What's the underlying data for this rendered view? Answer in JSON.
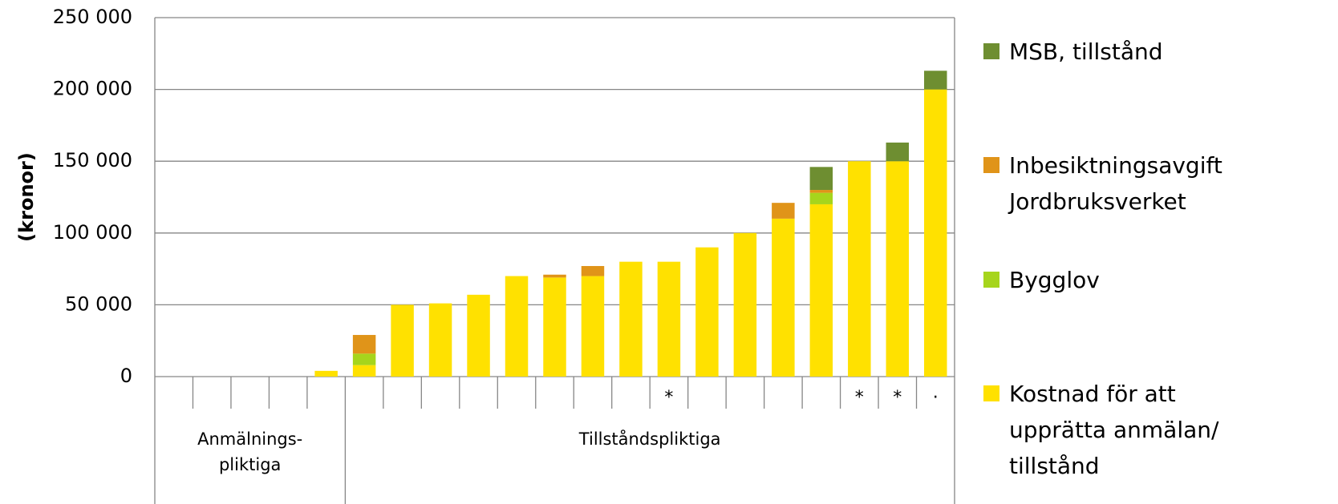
{
  "chart_data": {
    "type": "stacked_bar",
    "y_label": "(kronor)",
    "categories": [
      null,
      null,
      null,
      null,
      null,
      null,
      null,
      null,
      null,
      null,
      null,
      null,
      null,
      "*",
      null,
      null,
      null,
      null,
      "*",
      "*",
      "·"
    ],
    "groups": [
      "Anmälnings-\npliktiga",
      "Tillståndspliktiga"
    ],
    "series": [
      {
        "name": "Kostnad för att\nupprätta anmälan/\ntillstånd",
        "color": "#FFE100",
        "values": [
          0,
          0,
          0,
          0,
          4000,
          8000,
          50000,
          51000,
          57000,
          70000,
          69000,
          70000,
          80000,
          80000,
          90000,
          100000,
          110000,
          120000,
          150000,
          150000,
          200000
        ]
      },
      {
        "name": "Bygglov",
        "color": "#A6D51C",
        "values": [
          0,
          0,
          0,
          0,
          0,
          8000,
          0,
          0,
          0,
          0,
          0,
          0,
          0,
          0,
          0,
          0,
          0,
          8000,
          0,
          0,
          0
        ]
      },
      {
        "name": "Inbesiktningsavgift\nJordbruksverket",
        "color": "#E09419",
        "values": [
          0,
          0,
          0,
          0,
          0,
          13000,
          0,
          0,
          0,
          0,
          2000,
          7000,
          0,
          0,
          0,
          0,
          11000,
          2000,
          0,
          0,
          0
        ]
      },
      {
        "name": "MSB, tillstånd",
        "color": "#6E8E31",
        "values": [
          0,
          0,
          0,
          0,
          0,
          0,
          0,
          0,
          0,
          0,
          0,
          0,
          0,
          0,
          0,
          0,
          0,
          16000,
          0,
          13000,
          13000
        ]
      }
    ],
    "ylim": [
      0,
      250000
    ],
    "yticks": [
      0,
      {
        "value": 50000,
        "label": "50 000"
      },
      {
        "value": 100000,
        "label": "100 000"
      },
      {
        "value": 150000,
        "label": "150 000"
      },
      {
        "value": 200000,
        "label": "200 000"
      },
      {
        "value": 250000,
        "label": "250 000"
      }
    ],
    "grid": true
  }
}
